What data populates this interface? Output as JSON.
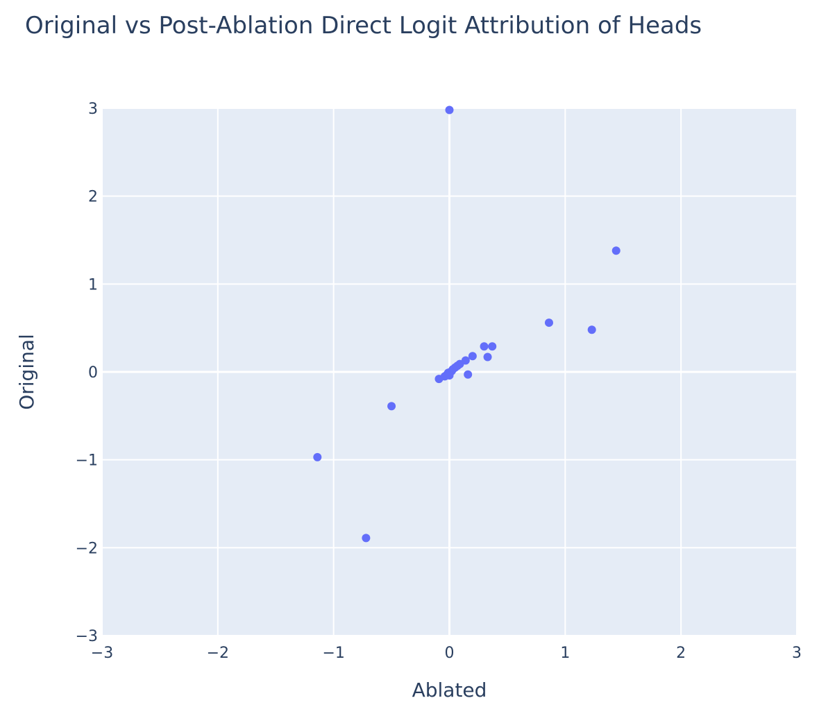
{
  "chart_data": {
    "type": "scatter",
    "title": "Original vs Post-Ablation Direct Logit Attribution of Heads",
    "xlabel": "Ablated",
    "ylabel": "Original",
    "xlim": [
      -3,
      3
    ],
    "ylim": [
      -3,
      3
    ],
    "x_ticks": [
      -3,
      -2,
      -1,
      0,
      1,
      2,
      3
    ],
    "y_ticks": [
      -3,
      -2,
      -1,
      0,
      1,
      2,
      3
    ],
    "x_tick_labels": [
      "−3",
      "−2",
      "−1",
      "0",
      "1",
      "2",
      "3"
    ],
    "y_tick_labels": [
      "−3",
      "−2",
      "−1",
      "0",
      "1",
      "2",
      "3"
    ],
    "grid": true,
    "legend": "none",
    "colors": {
      "marker": "#636efa",
      "plot_background": "#e5ecf6",
      "grid": "#ffffff",
      "text": "#2a3f5f"
    },
    "series": [
      {
        "x": [
          0.0,
          1.44,
          0.86,
          1.23,
          0.3,
          0.37,
          0.2,
          0.33,
          0.14,
          0.09,
          0.07,
          0.05,
          0.03,
          0.02,
          0.01,
          -0.01,
          -0.02,
          -0.04,
          -0.09,
          0.0,
          0.16,
          -0.5,
          -1.14,
          -0.72
        ],
        "y": [
          2.98,
          1.38,
          0.56,
          0.48,
          0.29,
          0.29,
          0.18,
          0.17,
          0.13,
          0.09,
          0.07,
          0.05,
          0.03,
          0.01,
          0.0,
          -0.01,
          -0.03,
          -0.05,
          -0.08,
          -0.04,
          -0.03,
          -0.39,
          -0.97,
          -1.89
        ]
      }
    ]
  }
}
